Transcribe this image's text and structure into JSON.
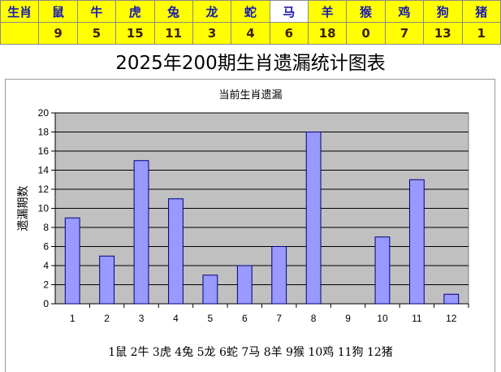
{
  "table": {
    "header_label": "生肖",
    "row_label": "",
    "selected_animal": "马",
    "animals": [
      "鼠",
      "牛",
      "虎",
      "兔",
      "龙",
      "蛇",
      "马",
      "羊",
      "猴",
      "鸡",
      "狗",
      "猪"
    ],
    "counts": [
      "9",
      "5",
      "15",
      "11",
      "3",
      "4",
      "6",
      "18",
      "0",
      "7",
      "13",
      "1"
    ]
  },
  "page_title": "2025年200期生肖遗漏统计图表",
  "caption": "1鼠 2牛 3虎 4兔 5龙 6蛇 7马 8羊 9猴 10鸡 11狗 12猪",
  "colors": {
    "table_bg": "#ffff00",
    "plot_bg": "#c0c0c0",
    "bar_fill": "#9999ff",
    "bar_stroke": "#000080"
  },
  "chart_data": {
    "type": "bar",
    "title": "当前生肖遗漏",
    "xlabel": "",
    "ylabel": "遗漏期数",
    "categories": [
      "1",
      "2",
      "3",
      "4",
      "5",
      "6",
      "7",
      "8",
      "9",
      "10",
      "11",
      "12"
    ],
    "values": [
      9,
      5,
      15,
      11,
      3,
      4,
      6,
      18,
      0,
      7,
      13,
      1
    ],
    "ylim": [
      0,
      20
    ],
    "yticks": [
      0,
      2,
      4,
      6,
      8,
      10,
      12,
      14,
      16,
      18,
      20
    ],
    "grid": true,
    "legend": "none"
  }
}
